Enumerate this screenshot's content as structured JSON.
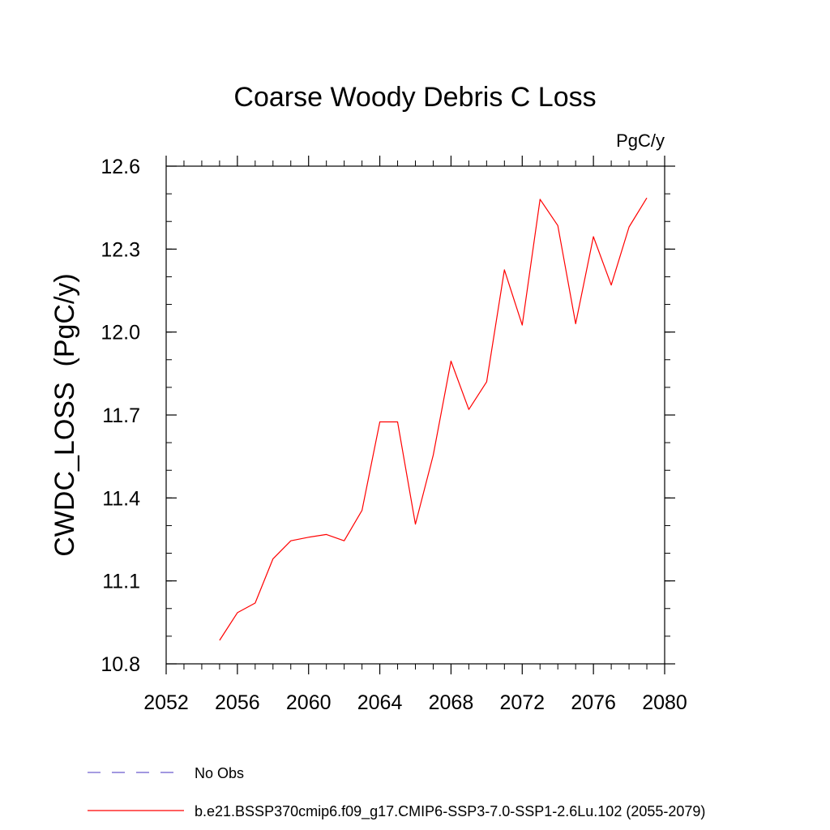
{
  "chart_data": {
    "type": "line",
    "title": "Coarse Woody Debris C Loss",
    "units_label": "PgC/y",
    "ylabel": "CWDC_LOSS  (PgC/y)",
    "xlabel": "",
    "xlim": [
      2052,
      2080
    ],
    "ylim": [
      10.8,
      12.6
    ],
    "x_ticks": [
      2052,
      2056,
      2060,
      2064,
      2068,
      2072,
      2076,
      2080
    ],
    "y_ticks": [
      10.8,
      11.1,
      11.4,
      11.7,
      12.0,
      12.3,
      12.6
    ],
    "x_tick_labels": [
      "2052",
      "2056",
      "2060",
      "2064",
      "2068",
      "2072",
      "2076",
      "2080"
    ],
    "y_tick_labels": [
      "10.8",
      "11.1",
      "11.4",
      "11.7",
      "12.0",
      "12.3",
      "12.6"
    ],
    "grid": false,
    "legend_position": "bottom",
    "series": [
      {
        "name": "b.e21.BSSP370cmip6.f09_g17.CMIP6-SSP3-7.0-SSP1-2.6Lu.102 (2055-2079)",
        "color": "#ff0000",
        "style": "solid",
        "x": [
          2055,
          2056,
          2057,
          2058,
          2059,
          2060,
          2061,
          2062,
          2063,
          2064,
          2065,
          2066,
          2067,
          2068,
          2069,
          2070,
          2071,
          2072,
          2073,
          2074,
          2075,
          2076,
          2077,
          2078,
          2079
        ],
        "values": [
          10.885,
          10.985,
          11.02,
          11.18,
          11.245,
          11.258,
          11.268,
          11.245,
          11.355,
          11.675,
          11.675,
          11.305,
          11.555,
          11.895,
          11.72,
          11.82,
          12.225,
          12.025,
          12.48,
          12.385,
          12.03,
          12.345,
          12.17,
          12.38,
          12.485
        ]
      }
    ],
    "legend": [
      {
        "label": "No Obs",
        "color": "#6a5acd",
        "style": "dashed"
      },
      {
        "label": "b.e21.BSSP370cmip6.f09_g17.CMIP6-SSP3-7.0-SSP1-2.6Lu.102 (2055-2079)",
        "color": "#ff0000",
        "style": "solid"
      }
    ]
  }
}
